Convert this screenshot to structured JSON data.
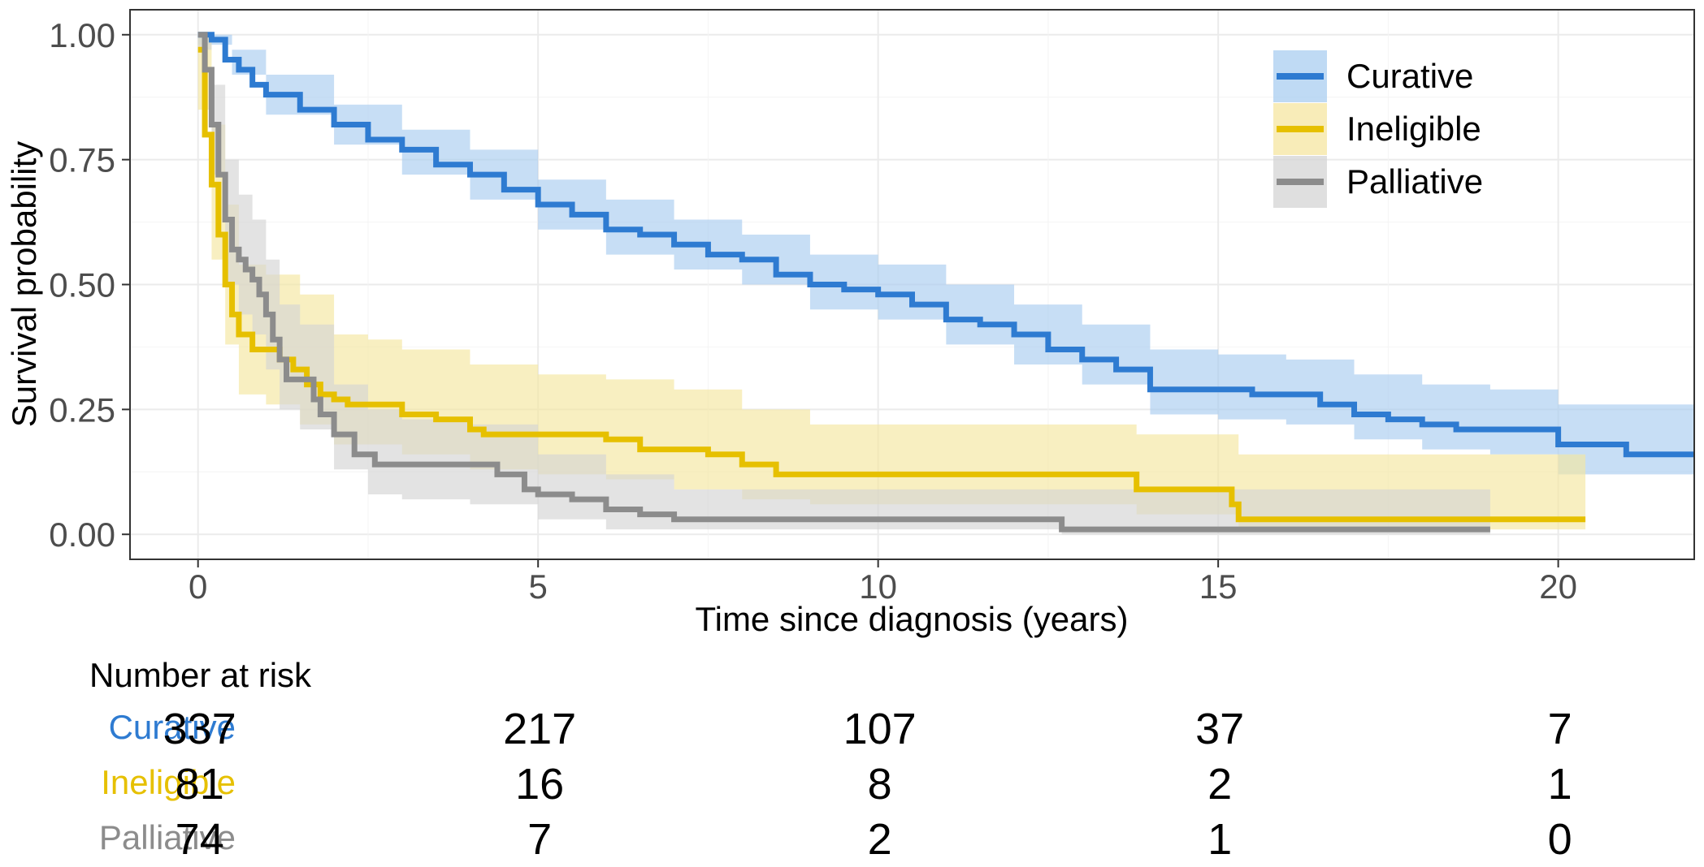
{
  "chart_data": {
    "type": "line",
    "subtype": "kaplan-meier",
    "xlabel": "Time since diagnosis (years)",
    "ylabel": "Survival probability",
    "xlim": [
      -1,
      22
    ],
    "ylim": [
      -0.05,
      1.05
    ],
    "xticks": [
      0,
      5,
      10,
      15,
      20
    ],
    "xtick_labels": [
      "0",
      "5",
      "10",
      "15",
      "20"
    ],
    "yticks": [
      0,
      0.25,
      0.5,
      0.75,
      1.0
    ],
    "ytick_labels": [
      "0.00",
      "0.25",
      "0.50",
      "0.75",
      "1.00"
    ],
    "grid": true,
    "legend_position": "top-right",
    "series": [
      {
        "name": "Curative",
        "color": "#2e7bd1",
        "band_color": "#a9cdf0",
        "line": [
          [
            0,
            1.0
          ],
          [
            0.2,
            0.99
          ],
          [
            0.4,
            0.95
          ],
          [
            0.6,
            0.93
          ],
          [
            0.8,
            0.9
          ],
          [
            1.0,
            0.88
          ],
          [
            1.5,
            0.85
          ],
          [
            2.0,
            0.82
          ],
          [
            2.5,
            0.79
          ],
          [
            3.0,
            0.77
          ],
          [
            3.5,
            0.74
          ],
          [
            4.0,
            0.72
          ],
          [
            4.5,
            0.69
          ],
          [
            5.0,
            0.66
          ],
          [
            5.5,
            0.64
          ],
          [
            6.0,
            0.61
          ],
          [
            6.5,
            0.6
          ],
          [
            7.0,
            0.58
          ],
          [
            7.5,
            0.56
          ],
          [
            8.0,
            0.55
          ],
          [
            8.5,
            0.52
          ],
          [
            9.0,
            0.5
          ],
          [
            9.5,
            0.49
          ],
          [
            10.0,
            0.48
          ],
          [
            10.5,
            0.46
          ],
          [
            11.0,
            0.43
          ],
          [
            11.5,
            0.42
          ],
          [
            12.0,
            0.4
          ],
          [
            12.5,
            0.37
          ],
          [
            13.0,
            0.35
          ],
          [
            13.5,
            0.33
          ],
          [
            14.0,
            0.29
          ],
          [
            14.5,
            0.29
          ],
          [
            15.0,
            0.29
          ],
          [
            15.5,
            0.28
          ],
          [
            16.0,
            0.28
          ],
          [
            16.5,
            0.26
          ],
          [
            17.0,
            0.24
          ],
          [
            17.5,
            0.23
          ],
          [
            18.0,
            0.22
          ],
          [
            18.5,
            0.21
          ],
          [
            19.0,
            0.21
          ],
          [
            19.5,
            0.21
          ],
          [
            20.0,
            0.18
          ],
          [
            21.0,
            0.16
          ],
          [
            22.0,
            0.16
          ]
        ],
        "upper": [
          [
            0,
            1.0
          ],
          [
            0.5,
            0.97
          ],
          [
            1.0,
            0.92
          ],
          [
            2.0,
            0.86
          ],
          [
            3.0,
            0.81
          ],
          [
            4.0,
            0.77
          ],
          [
            5.0,
            0.71
          ],
          [
            6.0,
            0.67
          ],
          [
            7.0,
            0.63
          ],
          [
            8.0,
            0.6
          ],
          [
            9.0,
            0.56
          ],
          [
            10.0,
            0.54
          ],
          [
            11.0,
            0.5
          ],
          [
            12.0,
            0.46
          ],
          [
            13.0,
            0.42
          ],
          [
            14.0,
            0.37
          ],
          [
            15.0,
            0.36
          ],
          [
            16.0,
            0.35
          ],
          [
            17.0,
            0.32
          ],
          [
            18.0,
            0.3
          ],
          [
            19.0,
            0.29
          ],
          [
            20.0,
            0.26
          ],
          [
            22.0,
            0.26
          ]
        ],
        "lower": [
          [
            0,
            0.98
          ],
          [
            0.5,
            0.92
          ],
          [
            1.0,
            0.84
          ],
          [
            2.0,
            0.78
          ],
          [
            3.0,
            0.72
          ],
          [
            4.0,
            0.67
          ],
          [
            5.0,
            0.61
          ],
          [
            6.0,
            0.56
          ],
          [
            7.0,
            0.53
          ],
          [
            8.0,
            0.5
          ],
          [
            9.0,
            0.45
          ],
          [
            10.0,
            0.43
          ],
          [
            11.0,
            0.38
          ],
          [
            12.0,
            0.34
          ],
          [
            13.0,
            0.3
          ],
          [
            14.0,
            0.24
          ],
          [
            15.0,
            0.23
          ],
          [
            16.0,
            0.22
          ],
          [
            17.0,
            0.19
          ],
          [
            18.0,
            0.17
          ],
          [
            19.0,
            0.16
          ],
          [
            20.0,
            0.12
          ],
          [
            22.0,
            0.1
          ]
        ]
      },
      {
        "name": "Ineligible",
        "color": "#e6c000",
        "band_color": "#f5e6a0",
        "line": [
          [
            0,
            0.97
          ],
          [
            0.1,
            0.8
          ],
          [
            0.2,
            0.7
          ],
          [
            0.3,
            0.6
          ],
          [
            0.4,
            0.5
          ],
          [
            0.5,
            0.44
          ],
          [
            0.6,
            0.4
          ],
          [
            0.8,
            0.37
          ],
          [
            1.0,
            0.37
          ],
          [
            1.2,
            0.35
          ],
          [
            1.4,
            0.33
          ],
          [
            1.6,
            0.3
          ],
          [
            1.8,
            0.28
          ],
          [
            2.0,
            0.27
          ],
          [
            2.2,
            0.26
          ],
          [
            2.5,
            0.26
          ],
          [
            3.0,
            0.24
          ],
          [
            3.5,
            0.23
          ],
          [
            4.0,
            0.21
          ],
          [
            4.2,
            0.2
          ],
          [
            5.0,
            0.2
          ],
          [
            6.0,
            0.19
          ],
          [
            6.5,
            0.17
          ],
          [
            7.0,
            0.17
          ],
          [
            7.5,
            0.16
          ],
          [
            8.0,
            0.14
          ],
          [
            8.5,
            0.12
          ],
          [
            9.0,
            0.12
          ],
          [
            10.0,
            0.12
          ],
          [
            12.0,
            0.12
          ],
          [
            13.5,
            0.12
          ],
          [
            13.8,
            0.09
          ],
          [
            14.5,
            0.09
          ],
          [
            15.0,
            0.09
          ],
          [
            15.2,
            0.06
          ],
          [
            15.3,
            0.03
          ],
          [
            20.4,
            0.03
          ]
        ],
        "upper": [
          [
            0,
            1.0
          ],
          [
            0.2,
            0.82
          ],
          [
            0.4,
            0.66
          ],
          [
            0.6,
            0.54
          ],
          [
            1.0,
            0.52
          ],
          [
            1.5,
            0.48
          ],
          [
            2.0,
            0.4
          ],
          [
            2.5,
            0.39
          ],
          [
            3.0,
            0.37
          ],
          [
            4.0,
            0.34
          ],
          [
            5.0,
            0.32
          ],
          [
            6.0,
            0.31
          ],
          [
            7.0,
            0.29
          ],
          [
            8.0,
            0.25
          ],
          [
            9.0,
            0.22
          ],
          [
            12.0,
            0.22
          ],
          [
            13.8,
            0.2
          ],
          [
            15.3,
            0.16
          ],
          [
            20.4,
            0.16
          ]
        ],
        "lower": [
          [
            0,
            0.85
          ],
          [
            0.2,
            0.55
          ],
          [
            0.4,
            0.38
          ],
          [
            0.6,
            0.28
          ],
          [
            1.0,
            0.26
          ],
          [
            1.5,
            0.22
          ],
          [
            2.0,
            0.18
          ],
          [
            3.0,
            0.16
          ],
          [
            4.0,
            0.13
          ],
          [
            5.0,
            0.12
          ],
          [
            6.0,
            0.11
          ],
          [
            7.0,
            0.09
          ],
          [
            8.0,
            0.07
          ],
          [
            9.0,
            0.06
          ],
          [
            12.0,
            0.06
          ],
          [
            13.8,
            0.04
          ],
          [
            15.3,
            0.01
          ],
          [
            20.4,
            0.0
          ]
        ]
      },
      {
        "name": "Palliative",
        "color": "#8c8c8c",
        "band_color": "#d4d4d4",
        "line": [
          [
            0,
            1.0
          ],
          [
            0.1,
            0.93
          ],
          [
            0.2,
            0.82
          ],
          [
            0.3,
            0.72
          ],
          [
            0.4,
            0.63
          ],
          [
            0.5,
            0.57
          ],
          [
            0.6,
            0.55
          ],
          [
            0.7,
            0.53
          ],
          [
            0.8,
            0.51
          ],
          [
            0.9,
            0.48
          ],
          [
            1.0,
            0.44
          ],
          [
            1.1,
            0.39
          ],
          [
            1.2,
            0.35
          ],
          [
            1.3,
            0.31
          ],
          [
            1.5,
            0.31
          ],
          [
            1.7,
            0.27
          ],
          [
            1.8,
            0.24
          ],
          [
            2.0,
            0.2
          ],
          [
            2.3,
            0.16
          ],
          [
            2.6,
            0.14
          ],
          [
            3.0,
            0.14
          ],
          [
            4.0,
            0.14
          ],
          [
            4.4,
            0.12
          ],
          [
            4.8,
            0.09
          ],
          [
            5.0,
            0.08
          ],
          [
            5.5,
            0.07
          ],
          [
            6.0,
            0.05
          ],
          [
            6.5,
            0.04
          ],
          [
            7.0,
            0.03
          ],
          [
            8.0,
            0.03
          ],
          [
            10.0,
            0.03
          ],
          [
            12.0,
            0.03
          ],
          [
            12.7,
            0.01
          ],
          [
            19.0,
            0.01
          ]
        ],
        "upper": [
          [
            0,
            1.0
          ],
          [
            0.2,
            0.9
          ],
          [
            0.4,
            0.75
          ],
          [
            0.6,
            0.68
          ],
          [
            0.8,
            0.63
          ],
          [
            1.0,
            0.55
          ],
          [
            1.2,
            0.46
          ],
          [
            1.5,
            0.42
          ],
          [
            2.0,
            0.3
          ],
          [
            2.5,
            0.25
          ],
          [
            3.0,
            0.23
          ],
          [
            4.0,
            0.22
          ],
          [
            5.0,
            0.16
          ],
          [
            6.0,
            0.12
          ],
          [
            7.0,
            0.09
          ],
          [
            12.0,
            0.09
          ],
          [
            12.7,
            0.09
          ],
          [
            19.0,
            0.09
          ]
        ],
        "lower": [
          [
            0,
            0.97
          ],
          [
            0.2,
            0.72
          ],
          [
            0.4,
            0.5
          ],
          [
            0.6,
            0.44
          ],
          [
            0.8,
            0.4
          ],
          [
            1.0,
            0.33
          ],
          [
            1.2,
            0.25
          ],
          [
            1.5,
            0.21
          ],
          [
            2.0,
            0.13
          ],
          [
            2.5,
            0.08
          ],
          [
            3.0,
            0.07
          ],
          [
            4.0,
            0.06
          ],
          [
            5.0,
            0.03
          ],
          [
            6.0,
            0.01
          ],
          [
            7.0,
            0.01
          ],
          [
            12.0,
            0.01
          ],
          [
            12.7,
            0.0
          ],
          [
            19.0,
            0.0
          ]
        ]
      }
    ]
  },
  "risk_table": {
    "title": "Number at risk",
    "times": [
      0,
      5,
      10,
      15,
      20
    ],
    "rows": [
      {
        "name": "Curative",
        "color": "#2e7bd1",
        "counts": [
          "337",
          "217",
          "107",
          "37",
          "7"
        ]
      },
      {
        "name": "Ineligible",
        "color": "#e6c000",
        "counts": [
          "81",
          "16",
          "8",
          "2",
          "1"
        ]
      },
      {
        "name": "Palliative",
        "color": "#8c8c8c",
        "counts": [
          "74",
          "7",
          "2",
          "1",
          "0"
        ]
      }
    ]
  }
}
